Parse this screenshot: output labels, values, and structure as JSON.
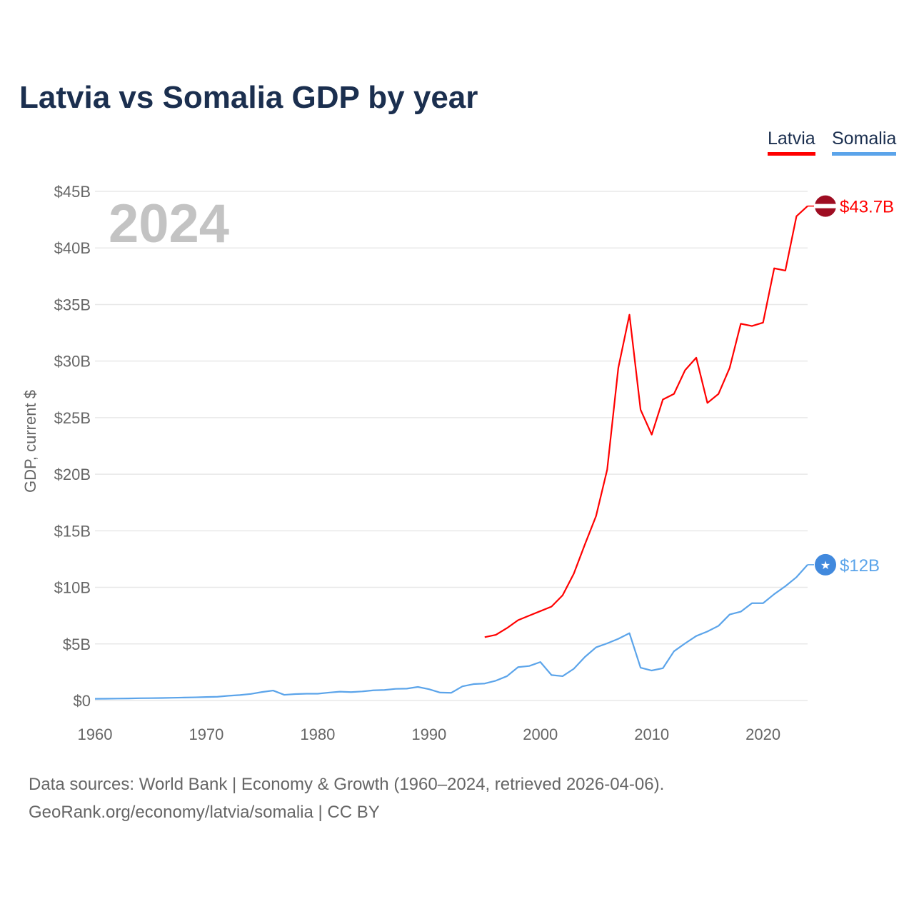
{
  "title": "Latvia vs Somalia GDP by year",
  "year_label": "2024",
  "footer": {
    "line1": "Data sources: World Bank | Economy & Growth (1960–2024, retrieved 2026-04-06).",
    "line2": "GeoRank.org/economy/latvia/somalia | CC BY"
  },
  "chart_data": {
    "type": "line",
    "title": "Latvia vs Somalia GDP by year",
    "xlabel": "",
    "ylabel": "GDP, current $",
    "xlim": [
      1960,
      2024
    ],
    "ylim": [
      0,
      45
    ],
    "x_ticks": [
      1960,
      1970,
      1980,
      1990,
      2000,
      2010,
      2020
    ],
    "y_ticks": [
      0,
      5,
      10,
      15,
      20,
      25,
      30,
      35,
      40,
      45
    ],
    "y_tick_labels": [
      "$0",
      "$5B",
      "$10B",
      "$15B",
      "$20B",
      "$25B",
      "$30B",
      "$35B",
      "$40B",
      "$45B"
    ],
    "grid": true,
    "legend": "top-right",
    "series": [
      {
        "name": "Latvia",
        "color": "#ff0000",
        "end_label": "$43.7B",
        "start": 1995,
        "values": [
          5.6,
          5.8,
          6.4,
          7.1,
          7.5,
          7.9,
          8.3,
          9.3,
          11.2,
          13.8,
          16.3,
          20.4,
          29.4,
          34.1,
          25.7,
          23.5,
          26.6,
          27.1,
          29.2,
          30.3,
          26.3,
          27.1,
          29.4,
          33.3,
          33.1,
          33.4,
          38.2,
          38.0,
          42.8,
          43.7
        ]
      },
      {
        "name": "Somalia",
        "color": "#5ba4ea",
        "end_label": "$12B",
        "start": 1960,
        "values": [
          0.15,
          0.16,
          0.17,
          0.18,
          0.2,
          0.21,
          0.22,
          0.24,
          0.26,
          0.28,
          0.31,
          0.33,
          0.42,
          0.48,
          0.58,
          0.75,
          0.88,
          0.5,
          0.57,
          0.6,
          0.6,
          0.7,
          0.78,
          0.74,
          0.8,
          0.9,
          0.93,
          1.03,
          1.05,
          1.2,
          1.0,
          0.7,
          0.68,
          1.25,
          1.45,
          1.5,
          1.75,
          2.15,
          2.95,
          3.05,
          3.4,
          2.25,
          2.15,
          2.8,
          3.85,
          4.7,
          5.05,
          5.45,
          5.95,
          2.9,
          2.65,
          2.85,
          4.35,
          5.05,
          5.7,
          6.1,
          6.6,
          7.6,
          7.85,
          8.6,
          8.6,
          9.4,
          10.1,
          10.9,
          12.0
        ]
      }
    ]
  }
}
